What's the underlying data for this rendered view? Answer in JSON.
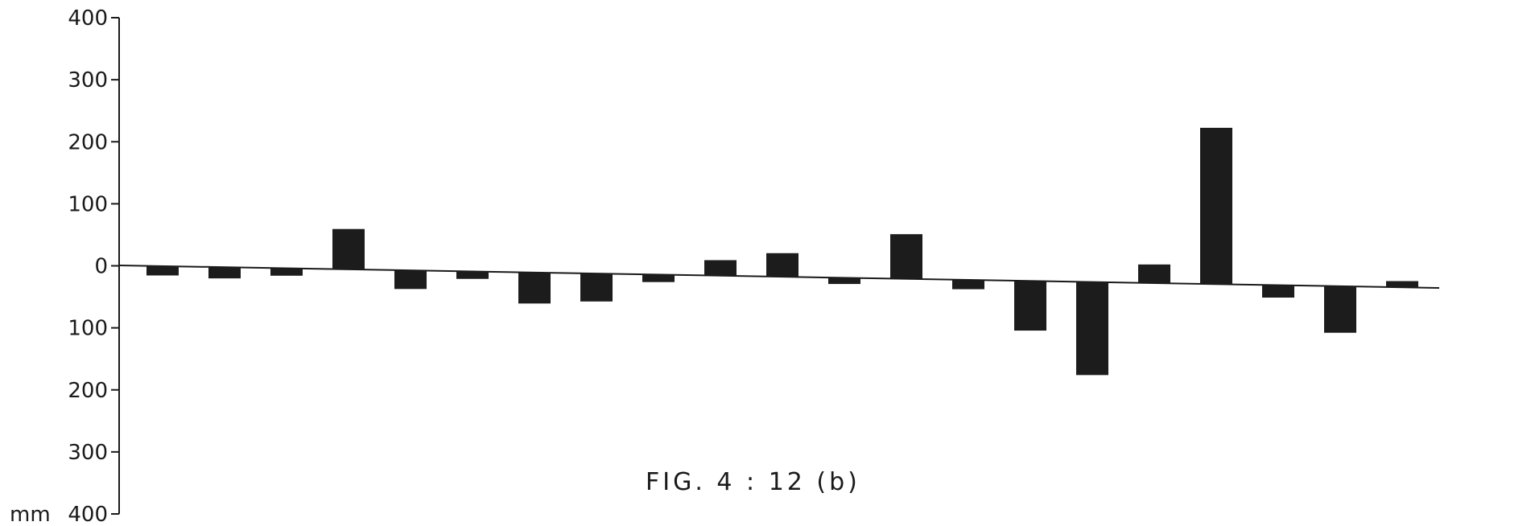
{
  "chart_data": {
    "type": "bar",
    "title": "FIG. 4 : 12 (b)",
    "ylabel": "mm",
    "ylim": [
      -400,
      400
    ],
    "grid": false,
    "y_ticks": [
      {
        "value": 400,
        "label": "400"
      },
      {
        "value": 300,
        "label": "300"
      },
      {
        "value": 200,
        "label": "200"
      },
      {
        "value": 100,
        "label": "100"
      },
      {
        "value": 0,
        "label": "0"
      },
      {
        "value": -100,
        "label": "100"
      },
      {
        "value": -200,
        "label": "200"
      },
      {
        "value": -300,
        "label": "300"
      },
      {
        "value": -400,
        "label": "400"
      }
    ],
    "bar_color": "#1c1c1c",
    "values": [
      -15,
      -18,
      -12,
      65,
      -30,
      -12,
      -50,
      -45,
      -12,
      25,
      38,
      -10,
      72,
      -15,
      -80,
      -150,
      30,
      252,
      -20,
      -75,
      10
    ]
  }
}
